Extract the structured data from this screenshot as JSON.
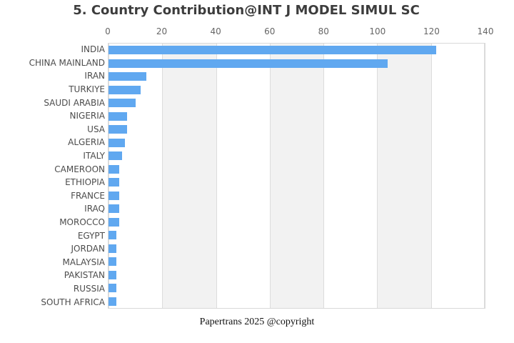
{
  "title": "5. Country Contribution@INT J MODEL SIMUL SC",
  "footer": "Papertrans 2025 @copyright",
  "colors": {
    "bar": "#60a8f0",
    "title_text": "#3d3d3d",
    "axis_text": "#666666",
    "label_text": "#4c4c4c",
    "stripe": "#f2f2f2",
    "gridline": "#dcdcdc",
    "plot_border": "#d9d9d9"
  },
  "chart_data": {
    "type": "bar",
    "orientation": "horizontal",
    "title": "5. Country Contribution@INT J MODEL SIMUL SC",
    "xlabel": "",
    "ylabel": "",
    "xlim": [
      0,
      140
    ],
    "xticks": [
      0,
      20,
      40,
      60,
      80,
      100,
      120,
      140
    ],
    "grid": true,
    "legend": false,
    "categories": [
      "INDIA",
      "CHINA MAINLAND",
      "IRAN",
      "TURKIYE",
      "SAUDI ARABIA",
      "NIGERIA",
      "USA",
      "ALGERIA",
      "ITALY",
      "CAMEROON",
      "ETHIOPIA",
      "FRANCE",
      "IRAQ",
      "MOROCCO",
      "EGYPT",
      "JORDAN",
      "MALAYSIA",
      "PAKISTAN",
      "RUSSIA",
      "SOUTH AFRICA"
    ],
    "values": [
      122,
      104,
      14,
      12,
      10,
      7,
      7,
      6,
      5,
      4,
      4,
      4,
      4,
      4,
      3,
      3,
      3,
      3,
      3,
      3
    ]
  }
}
